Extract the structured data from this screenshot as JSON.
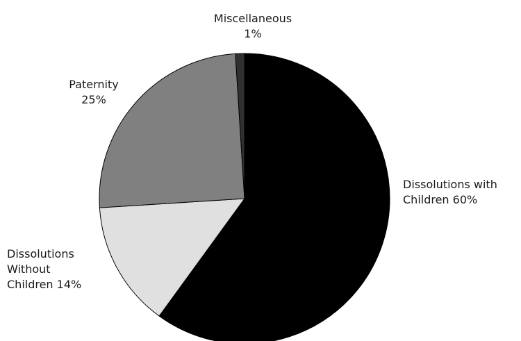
{
  "chart_data": {
    "type": "pie",
    "title": "",
    "slices": [
      {
        "label": "Dissolutions with Children",
        "value": 60,
        "color": "#000000",
        "label_lines": [
          "Dissolutions with",
          "Children 60%"
        ]
      },
      {
        "label": "Dissolutions Without Children",
        "value": 14,
        "color": "#e0e0e0",
        "label_lines": [
          "Dissolutions",
          "Without",
          "Children 14%"
        ]
      },
      {
        "label": "Paternity",
        "value": 25,
        "color": "#808080",
        "label_lines": [
          "Paternity",
          "25%"
        ]
      },
      {
        "label": "Miscellaneous",
        "value": 1,
        "color": "#303030",
        "label_lines": [
          "Miscellaneous",
          "1%"
        ]
      }
    ],
    "start_angle": "12 o'clock",
    "direction": "clockwise",
    "legend": "none"
  }
}
